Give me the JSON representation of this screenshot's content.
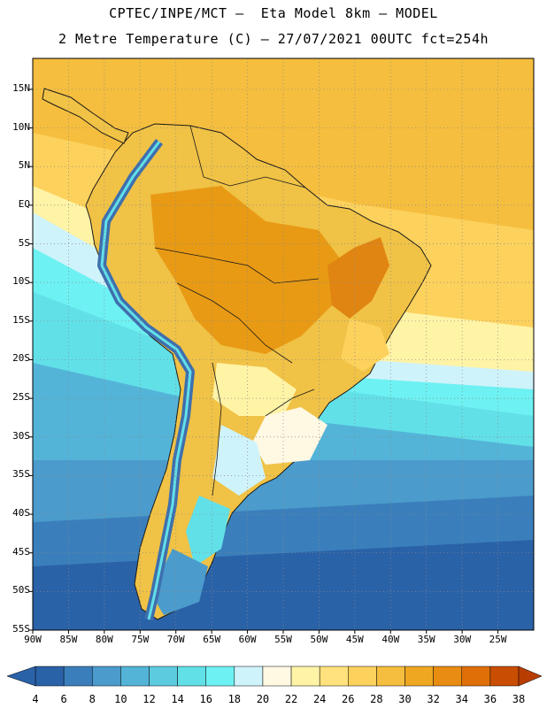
{
  "header": {
    "line1": "CPTEC/INPE/MCT –  Eta Model 8km – MODEL",
    "line2": "2 Metre Temperature (C) – 27/07/2021 00UTC fct=254h"
  },
  "map": {
    "lat_labels": [
      "15N",
      "10N",
      "5N",
      "EQ",
      "5S",
      "10S",
      "15S",
      "20S",
      "25S",
      "30S",
      "35S",
      "40S",
      "45S",
      "50S",
      "55S"
    ],
    "lon_labels": [
      "90W",
      "85W",
      "80W",
      "75W",
      "70W",
      "65W",
      "60W",
      "55W",
      "50W",
      "45W",
      "40W",
      "35W",
      "30W",
      "25W"
    ],
    "lat_values": [
      15,
      10,
      5,
      0,
      -5,
      -10,
      -15,
      -20,
      -25,
      -30,
      -35,
      -40,
      -45,
      -50,
      -55
    ],
    "lon_values": [
      -90,
      -85,
      -80,
      -75,
      -70,
      -65,
      -60,
      -55,
      -50,
      -45,
      -40,
      -35,
      -30,
      -25
    ],
    "lat_range": [
      -55,
      19
    ],
    "lon_range": [
      -90,
      -20
    ],
    "grid": "dotted"
  },
  "colorbar": {
    "labels": [
      "4",
      "6",
      "8",
      "10",
      "12",
      "14",
      "16",
      "18",
      "20",
      "22",
      "24",
      "26",
      "28",
      "30",
      "32",
      "34",
      "36",
      "38"
    ],
    "colors": [
      "#2a62a8",
      "#3a7fbb",
      "#4b9bcc",
      "#53b4d8",
      "#5ccbe0",
      "#62e0e8",
      "#6ef1f2",
      "#cff3fb",
      "#fff8e3",
      "#fff3a6",
      "#ffe27d",
      "#fcd15c",
      "#f5be3e",
      "#efa722",
      "#e88c12",
      "#df6f06",
      "#c94e02"
    ],
    "low_color": "#2a62a8",
    "high_color": "#b83d02"
  }
}
